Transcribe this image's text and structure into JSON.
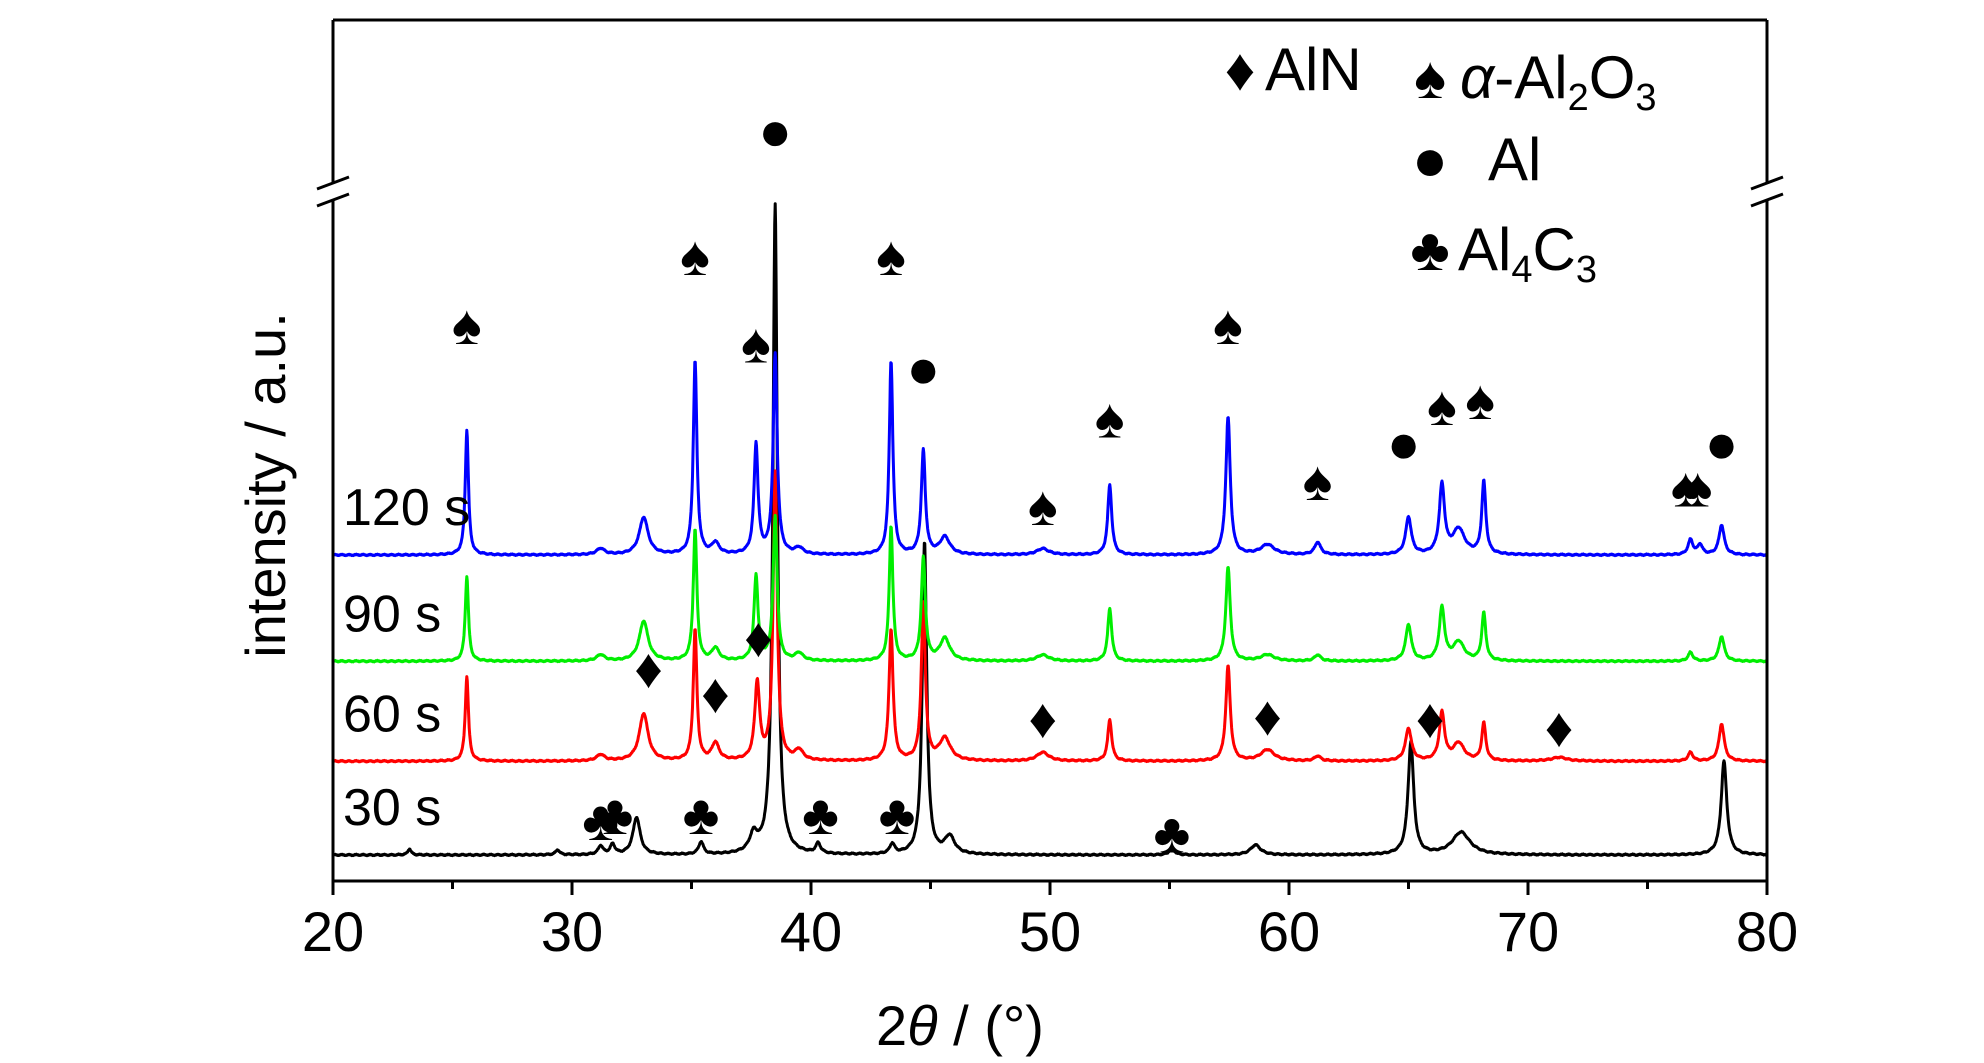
{
  "chart_data": {
    "type": "line",
    "xlabel_parts": [
      "2",
      "θ",
      " / (°)"
    ],
    "ylabel": "intensity / a.u.",
    "xlim": [
      20,
      80
    ],
    "x_ticks": [
      20,
      30,
      40,
      50,
      60,
      70,
      80
    ],
    "axis_break": true,
    "grid": false,
    "legend_position": "top-right",
    "symbols": {
      "AlN": "♦",
      "alpha-Al2O3": "♠",
      "Al": "●",
      "Al4C3": "♣"
    },
    "legend": [
      {
        "key": "AlN",
        "parts": [
          "AlN"
        ]
      },
      {
        "key": "alpha-Al2O3",
        "parts": [
          "α",
          "-Al",
          "2",
          "O",
          "3"
        ]
      },
      {
        "key": "Al",
        "parts": [
          "Al"
        ]
      },
      {
        "key": "Al4C3",
        "parts": [
          "Al",
          "4",
          "C",
          "3"
        ]
      }
    ],
    "series": [
      {
        "label": "30 s",
        "color": "#000000",
        "baseline": 0.0,
        "peaks": [
          {
            "x": 23.2,
            "h": 0.05,
            "w": 0.08
          },
          {
            "x": 29.4,
            "h": 0.04,
            "w": 0.1
          },
          {
            "x": 31.2,
            "h": 0.07,
            "w": 0.12
          },
          {
            "x": 31.7,
            "h": 0.08,
            "w": 0.12
          },
          {
            "x": 32.7,
            "h": 0.3,
            "w": 0.18
          },
          {
            "x": 35.4,
            "h": 0.1,
            "w": 0.12
          },
          {
            "x": 37.6,
            "h": 0.14,
            "w": 0.2
          },
          {
            "x": 38.5,
            "h": 5.2,
            "w": 0.11
          },
          {
            "x": 40.3,
            "h": 0.08,
            "w": 0.12
          },
          {
            "x": 43.4,
            "h": 0.08,
            "w": 0.12
          },
          {
            "x": 44.75,
            "h": 2.5,
            "w": 0.11
          },
          {
            "x": 45.8,
            "h": 0.14,
            "w": 0.25
          },
          {
            "x": 55.1,
            "h": 0.06,
            "w": 0.12
          },
          {
            "x": 58.6,
            "h": 0.08,
            "w": 0.25
          },
          {
            "x": 65.1,
            "h": 0.9,
            "w": 0.14
          },
          {
            "x": 67.2,
            "h": 0.18,
            "w": 0.45
          },
          {
            "x": 78.2,
            "h": 0.75,
            "w": 0.14
          }
        ]
      },
      {
        "label": "60 s",
        "color": "#ff0000",
        "baseline": 0.75,
        "peaks": [
          {
            "x": 25.6,
            "h": 0.68,
            "w": 0.08
          },
          {
            "x": 31.2,
            "h": 0.05,
            "w": 0.2
          },
          {
            "x": 33.0,
            "h": 0.38,
            "w": 0.22
          },
          {
            "x": 35.15,
            "h": 1.05,
            "w": 0.09
          },
          {
            "x": 36.0,
            "h": 0.14,
            "w": 0.18
          },
          {
            "x": 37.75,
            "h": 0.62,
            "w": 0.12
          },
          {
            "x": 38.5,
            "h": 2.3,
            "w": 0.1
          },
          {
            "x": 39.5,
            "h": 0.08,
            "w": 0.2
          },
          {
            "x": 43.35,
            "h": 1.05,
            "w": 0.1
          },
          {
            "x": 44.7,
            "h": 1.25,
            "w": 0.1
          },
          {
            "x": 45.6,
            "h": 0.18,
            "w": 0.28
          },
          {
            "x": 49.7,
            "h": 0.07,
            "w": 0.3
          },
          {
            "x": 52.5,
            "h": 0.33,
            "w": 0.1
          },
          {
            "x": 57.45,
            "h": 0.76,
            "w": 0.11
          },
          {
            "x": 59.1,
            "h": 0.09,
            "w": 0.35
          },
          {
            "x": 61.2,
            "h": 0.04,
            "w": 0.15
          },
          {
            "x": 65.0,
            "h": 0.26,
            "w": 0.15
          },
          {
            "x": 66.4,
            "h": 0.38,
            "w": 0.13
          },
          {
            "x": 67.1,
            "h": 0.14,
            "w": 0.28
          },
          {
            "x": 68.15,
            "h": 0.3,
            "w": 0.1
          },
          {
            "x": 71.3,
            "h": 0.03,
            "w": 0.4
          },
          {
            "x": 76.8,
            "h": 0.07,
            "w": 0.12
          },
          {
            "x": 78.1,
            "h": 0.3,
            "w": 0.13
          }
        ]
      },
      {
        "label": "90 s",
        "color": "#00ee00",
        "baseline": 1.55,
        "peaks": [
          {
            "x": 25.6,
            "h": 0.68,
            "w": 0.08
          },
          {
            "x": 31.2,
            "h": 0.05,
            "w": 0.2
          },
          {
            "x": 33.0,
            "h": 0.32,
            "w": 0.22
          },
          {
            "x": 35.15,
            "h": 1.05,
            "w": 0.09
          },
          {
            "x": 36.0,
            "h": 0.1,
            "w": 0.18
          },
          {
            "x": 37.7,
            "h": 0.68,
            "w": 0.1
          },
          {
            "x": 38.5,
            "h": 1.15,
            "w": 0.1
          },
          {
            "x": 39.5,
            "h": 0.06,
            "w": 0.2
          },
          {
            "x": 43.35,
            "h": 1.08,
            "w": 0.09
          },
          {
            "x": 44.7,
            "h": 0.82,
            "w": 0.1
          },
          {
            "x": 45.6,
            "h": 0.18,
            "w": 0.25
          },
          {
            "x": 49.7,
            "h": 0.05,
            "w": 0.3
          },
          {
            "x": 52.5,
            "h": 0.42,
            "w": 0.1
          },
          {
            "x": 57.45,
            "h": 0.75,
            "w": 0.11
          },
          {
            "x": 59.1,
            "h": 0.05,
            "w": 0.35
          },
          {
            "x": 61.2,
            "h": 0.05,
            "w": 0.15
          },
          {
            "x": 65.0,
            "h": 0.29,
            "w": 0.14
          },
          {
            "x": 66.4,
            "h": 0.42,
            "w": 0.13
          },
          {
            "x": 67.1,
            "h": 0.15,
            "w": 0.28
          },
          {
            "x": 68.15,
            "h": 0.38,
            "w": 0.1
          },
          {
            "x": 76.8,
            "h": 0.07,
            "w": 0.12
          },
          {
            "x": 78.1,
            "h": 0.2,
            "w": 0.13
          }
        ]
      },
      {
        "label": "120 s",
        "color": "#0000ff",
        "baseline": 2.4,
        "peaks": [
          {
            "x": 25.6,
            "h": 1.0,
            "w": 0.08
          },
          {
            "x": 31.2,
            "h": 0.05,
            "w": 0.2
          },
          {
            "x": 33.0,
            "h": 0.3,
            "w": 0.22
          },
          {
            "x": 35.15,
            "h": 1.55,
            "w": 0.09
          },
          {
            "x": 36.0,
            "h": 0.09,
            "w": 0.18
          },
          {
            "x": 37.7,
            "h": 0.88,
            "w": 0.1
          },
          {
            "x": 38.5,
            "h": 1.6,
            "w": 0.1
          },
          {
            "x": 39.5,
            "h": 0.05,
            "w": 0.2
          },
          {
            "x": 43.35,
            "h": 1.55,
            "w": 0.09
          },
          {
            "x": 44.7,
            "h": 0.83,
            "w": 0.1
          },
          {
            "x": 45.6,
            "h": 0.14,
            "w": 0.25
          },
          {
            "x": 49.7,
            "h": 0.05,
            "w": 0.3
          },
          {
            "x": 52.5,
            "h": 0.56,
            "w": 0.1
          },
          {
            "x": 57.45,
            "h": 1.1,
            "w": 0.11
          },
          {
            "x": 59.1,
            "h": 0.08,
            "w": 0.35
          },
          {
            "x": 61.2,
            "h": 0.1,
            "w": 0.15
          },
          {
            "x": 65.0,
            "h": 0.3,
            "w": 0.14
          },
          {
            "x": 66.4,
            "h": 0.55,
            "w": 0.13
          },
          {
            "x": 67.1,
            "h": 0.2,
            "w": 0.3
          },
          {
            "x": 68.15,
            "h": 0.58,
            "w": 0.1
          },
          {
            "x": 76.8,
            "h": 0.12,
            "w": 0.12
          },
          {
            "x": 77.2,
            "h": 0.08,
            "w": 0.12
          },
          {
            "x": 78.1,
            "h": 0.24,
            "w": 0.13
          }
        ]
      }
    ],
    "phase_markers": [
      {
        "phase": "alpha-Al2O3",
        "x": 25.6,
        "y": 4.25
      },
      {
        "phase": "alpha-Al2O3",
        "x": 35.15,
        "y": 4.8
      },
      {
        "phase": "alpha-Al2O3",
        "x": 37.7,
        "y": 4.1
      },
      {
        "phase": "Al",
        "x": 38.5,
        "y": 5.8
      },
      {
        "phase": "alpha-Al2O3",
        "x": 43.35,
        "y": 4.8
      },
      {
        "phase": "Al",
        "x": 44.7,
        "y": 3.9
      },
      {
        "phase": "alpha-Al2O3",
        "x": 49.7,
        "y": 2.8
      },
      {
        "phase": "alpha-Al2O3",
        "x": 52.5,
        "y": 3.5
      },
      {
        "phase": "alpha-Al2O3",
        "x": 57.45,
        "y": 4.25
      },
      {
        "phase": "alpha-Al2O3",
        "x": 61.2,
        "y": 3.0
      },
      {
        "phase": "Al",
        "x": 64.8,
        "y": 3.3
      },
      {
        "phase": "alpha-Al2O3",
        "x": 66.4,
        "y": 3.6
      },
      {
        "phase": "alpha-Al2O3",
        "x": 68.0,
        "y": 3.65
      },
      {
        "phase": "alpha-Al2O3",
        "x": 76.6,
        "y": 2.95
      },
      {
        "phase": "alpha-Al2O3",
        "x": 77.1,
        "y": 2.95
      },
      {
        "phase": "Al",
        "x": 78.1,
        "y": 3.3
      },
      {
        "phase": "AlN",
        "x": 33.2,
        "y": 1.5
      },
      {
        "phase": "AlN",
        "x": 36.0,
        "y": 1.3
      },
      {
        "phase": "AlN",
        "x": 37.8,
        "y": 1.75
      },
      {
        "phase": "AlN",
        "x": 49.7,
        "y": 1.1
      },
      {
        "phase": "AlN",
        "x": 59.1,
        "y": 1.12
      },
      {
        "phase": "AlN",
        "x": 65.9,
        "y": 1.1
      },
      {
        "phase": "AlN",
        "x": 71.3,
        "y": 1.03
      },
      {
        "phase": "Al4C3",
        "x": 31.2,
        "y": 0.28
      },
      {
        "phase": "Al4C3",
        "x": 31.8,
        "y": 0.33
      },
      {
        "phase": "Al4C3",
        "x": 35.4,
        "y": 0.33
      },
      {
        "phase": "Al4C3",
        "x": 40.4,
        "y": 0.33
      },
      {
        "phase": "Al4C3",
        "x": 43.6,
        "y": 0.33
      },
      {
        "phase": "Al4C3",
        "x": 55.1,
        "y": 0.18
      }
    ]
  }
}
